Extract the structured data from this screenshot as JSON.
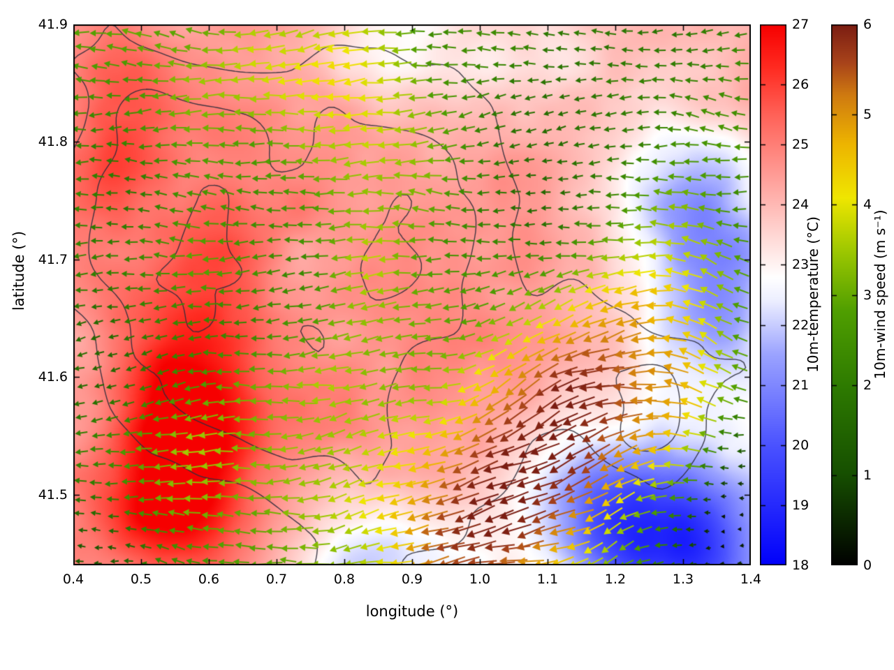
{
  "chart_data": {
    "type": "heatmap",
    "title": "",
    "xlabel": "longitude (°)",
    "ylabel": "latitude (°)",
    "xlim": [
      0.4,
      1.4
    ],
    "ylim": [
      41.44,
      41.9
    ],
    "grid": false,
    "x_ticks": [
      {
        "v": 0.4,
        "label": "0.4"
      },
      {
        "v": 0.5,
        "label": "0.5"
      },
      {
        "v": 0.6,
        "label": "0.6"
      },
      {
        "v": 0.7,
        "label": "0.7"
      },
      {
        "v": 0.8,
        "label": "0.8"
      },
      {
        "v": 0.9,
        "label": "0.9"
      },
      {
        "v": 1.0,
        "label": "1.0"
      },
      {
        "v": 1.1,
        "label": "1.1"
      },
      {
        "v": 1.2,
        "label": "1.2"
      },
      {
        "v": 1.3,
        "label": "1.3"
      },
      {
        "v": 1.4,
        "label": "1.4"
      }
    ],
    "y_ticks": [
      {
        "v": 41.5,
        "label": "41.5"
      },
      {
        "v": 41.6,
        "label": "41.6"
      },
      {
        "v": 41.7,
        "label": "41.7"
      },
      {
        "v": 41.8,
        "label": "41.8"
      },
      {
        "v": 41.9,
        "label": "41.9"
      }
    ],
    "temperature_colorbar": {
      "label": "10m-temperature (°C)",
      "min": 18,
      "max": 27,
      "ticks": [
        {
          "v": 18,
          "label": "18"
        },
        {
          "v": 19,
          "label": "19"
        },
        {
          "v": 20,
          "label": "20"
        },
        {
          "v": 21,
          "label": "21"
        },
        {
          "v": 22,
          "label": "22"
        },
        {
          "v": 23,
          "label": "23"
        },
        {
          "v": 24,
          "label": "24"
        },
        {
          "v": 25,
          "label": "25"
        },
        {
          "v": 26,
          "label": "26"
        },
        {
          "v": 27,
          "label": "27"
        }
      ],
      "stops": [
        [
          0.0,
          "#0000fa"
        ],
        [
          0.222,
          "#4a52ff"
        ],
        [
          0.389,
          "#9aa2ff"
        ],
        [
          0.489,
          "#eceeff"
        ],
        [
          0.533,
          "#ffffff"
        ],
        [
          0.611,
          "#ffd7d4"
        ],
        [
          0.722,
          "#ff9c96"
        ],
        [
          0.833,
          "#ff6258"
        ],
        [
          0.922,
          "#ff2a20"
        ],
        [
          1.0,
          "#f60000"
        ]
      ]
    },
    "wind_colorbar": {
      "label": "10m-wind speed (m s⁻¹)",
      "min": 0,
      "max": 6,
      "ticks": [
        {
          "v": 0,
          "label": "0"
        },
        {
          "v": 1,
          "label": "1"
        },
        {
          "v": 2,
          "label": "2"
        },
        {
          "v": 3,
          "label": "3"
        },
        {
          "v": 4,
          "label": "4"
        },
        {
          "v": 5,
          "label": "5"
        },
        {
          "v": 6,
          "label": "6"
        }
      ],
      "stops": [
        [
          0.0,
          "#000000"
        ],
        [
          0.17,
          "#164f00"
        ],
        [
          0.33,
          "#2d7a00"
        ],
        [
          0.47,
          "#4f9e00"
        ],
        [
          0.58,
          "#9cc700"
        ],
        [
          0.68,
          "#efe600"
        ],
        [
          0.78,
          "#edb400"
        ],
        [
          0.87,
          "#cf7a10"
        ],
        [
          0.93,
          "#a8431a"
        ],
        [
          1.0,
          "#7b1d12"
        ]
      ]
    },
    "temperature_field": {
      "base": 24.3,
      "noise_amp": 0.7,
      "fine_noise_amp": 0.35,
      "blobs": [
        [
          0.57,
          41.575,
          2.6,
          0.065,
          0.06
        ],
        [
          0.53,
          41.49,
          2.3,
          0.09,
          0.05
        ],
        [
          0.46,
          41.8,
          1.4,
          0.06,
          0.09
        ],
        [
          0.62,
          41.7,
          0.9,
          0.05,
          0.06
        ],
        [
          0.88,
          41.6,
          0.7,
          0.13,
          0.1
        ],
        [
          1.3,
          41.455,
          -4.6,
          0.12,
          0.05
        ],
        [
          1.2,
          41.5,
          -2.0,
          0.09,
          0.05
        ],
        [
          1.35,
          41.67,
          -3.0,
          0.07,
          0.07
        ],
        [
          1.28,
          41.76,
          -1.4,
          0.08,
          0.05
        ],
        [
          0.86,
          41.44,
          -2.0,
          0.11,
          0.04
        ],
        [
          0.87,
          41.885,
          -1.3,
          0.08,
          0.035
        ],
        [
          1.08,
          41.87,
          -0.9,
          0.1,
          0.05
        ]
      ]
    },
    "wind_field": {
      "base_speed": 2.4,
      "base_direction_deg": 180,
      "noise_amp": 0.9,
      "speed_blobs": [
        [
          1.07,
          41.53,
          3.0,
          0.13,
          0.08
        ],
        [
          1.2,
          41.62,
          2.4,
          0.09,
          0.07
        ],
        [
          0.98,
          41.45,
          1.6,
          0.1,
          0.05
        ],
        [
          1.34,
          41.46,
          -2.6,
          0.07,
          0.045
        ],
        [
          1.37,
          41.52,
          -1.5,
          0.05,
          0.04
        ],
        [
          0.7,
          41.86,
          1.4,
          0.18,
          0.045
        ],
        [
          0.84,
          41.72,
          1.2,
          0.06,
          0.12
        ],
        [
          0.58,
          41.54,
          1.4,
          0.09,
          0.05
        ],
        [
          1.33,
          41.57,
          1.3,
          0.05,
          0.09
        ],
        [
          1.12,
          41.8,
          -0.9,
          0.12,
          0.07
        ],
        [
          0.45,
          41.65,
          -0.7,
          0.06,
          0.15
        ],
        [
          0.42,
          41.445,
          -1.2,
          0.06,
          0.03
        ]
      ],
      "direction_blobs": [
        [
          1.1,
          41.53,
          30,
          0.2,
          0.11
        ],
        [
          1.33,
          41.6,
          -40,
          0.05,
          0.09
        ]
      ]
    },
    "contours": {
      "levels": [
        0.72,
        0.98,
        1.24
      ],
      "color": "#2e2e3c",
      "noise_amp": 1.0,
      "noise_scale": 3.2,
      "blobs": [
        [
          0.78,
          41.66,
          0.85,
          0.2,
          0.13
        ],
        [
          0.6,
          41.8,
          0.35,
          0.09,
          0.06
        ],
        [
          1.25,
          41.56,
          0.5,
          0.07,
          0.05
        ],
        [
          1.3,
          41.82,
          -0.55,
          0.12,
          0.08
        ],
        [
          0.44,
          41.46,
          -0.5,
          0.1,
          0.06
        ],
        [
          0.48,
          41.7,
          0.3,
          0.05,
          0.12
        ]
      ]
    }
  }
}
